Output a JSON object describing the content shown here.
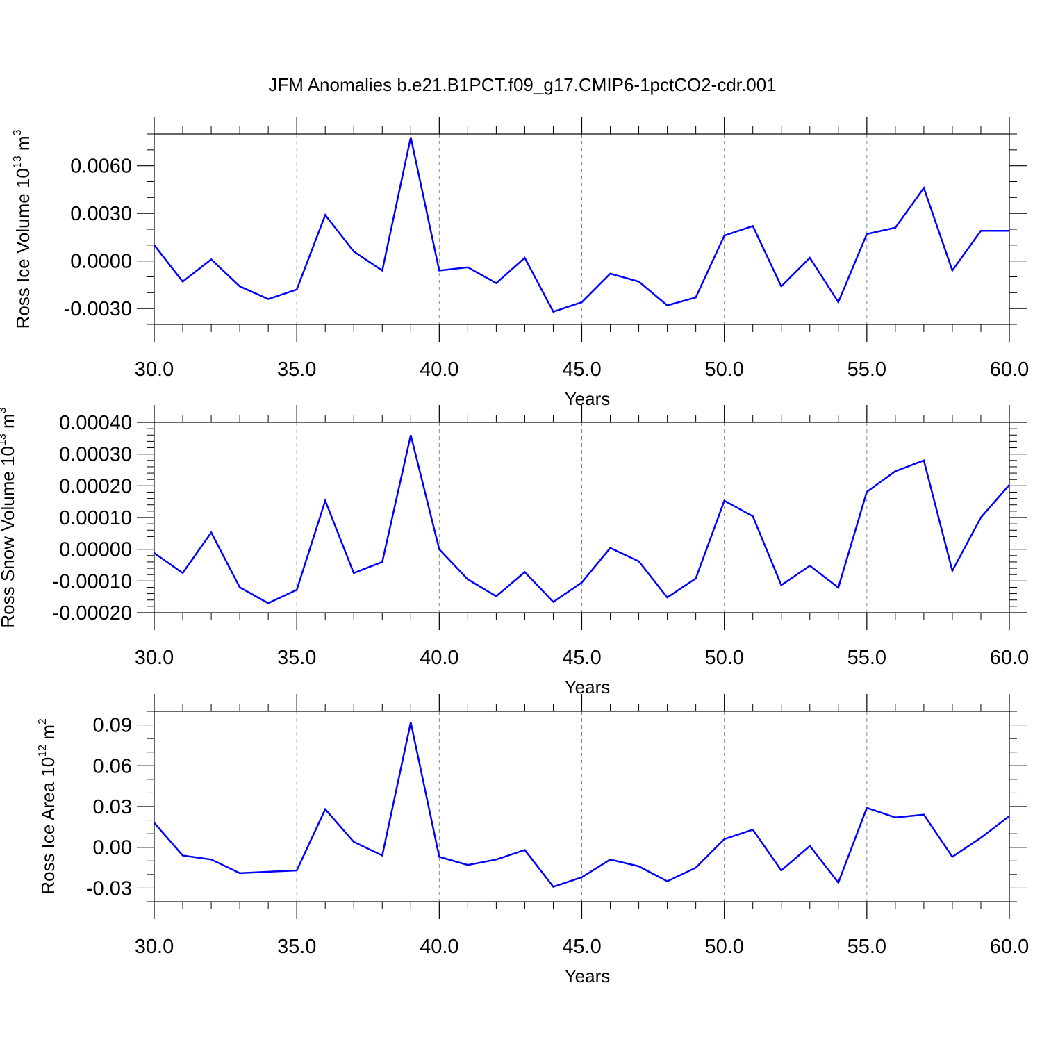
{
  "figure": {
    "title": "JFM Anomalies b.e21.B1PCT.f09_g17.CMIP6-1pctCO2-cdr.001"
  },
  "colors": {
    "series": "#0000ff",
    "grid": "#888888",
    "axis": "#000000"
  },
  "chart_data": [
    {
      "type": "line",
      "ylabel": {
        "main": "Ross Ice Volume 10",
        "sup1": "13",
        "mid": " m",
        "sup2": "3"
      },
      "xlabel": "Years",
      "xlim": [
        30,
        60
      ],
      "ylim": [
        -0.004,
        0.008
      ],
      "x_ticks": [
        30,
        35,
        40,
        45,
        50,
        55,
        60
      ],
      "x_tick_labels": [
        "30.0",
        "35.0",
        "40.0",
        "45.0",
        "50.0",
        "55.0",
        "60.0"
      ],
      "y_ticks": [
        -0.003,
        0,
        0.003,
        0.006
      ],
      "y_tick_labels": [
        "-0.0030",
        "0.0000",
        "0.0030",
        "0.0060"
      ],
      "y_minor_step": 0.001,
      "grid": "x-dashed",
      "series": [
        {
          "x": [
            30,
            31,
            32,
            33,
            34,
            35,
            36,
            37,
            38,
            39,
            40,
            41,
            42,
            43,
            44,
            45,
            46,
            47,
            48,
            49,
            50,
            51,
            52,
            53,
            54,
            55,
            56,
            57,
            58,
            59,
            60
          ],
          "values": [
            0.001,
            -0.0013,
            0.0001,
            -0.0016,
            -0.0024,
            -0.0018,
            0.0029,
            0.0006,
            -0.0006,
            0.0078,
            -0.0006,
            -0.0004,
            -0.0014,
            0.0002,
            -0.0032,
            -0.0026,
            -0.0008,
            -0.0013,
            -0.0028,
            -0.0023,
            0.0016,
            0.0022,
            -0.0016,
            0.0002,
            -0.0026,
            0.0017,
            0.0021,
            0.0046,
            -0.0006,
            0.0019,
            0.0019
          ]
        }
      ]
    },
    {
      "type": "line",
      "ylabel": {
        "main": "Ross Snow Volume 10",
        "sup1": "13",
        "mid": " m",
        "sup2": "3"
      },
      "xlabel": "Years",
      "xlim": [
        30,
        60
      ],
      "ylim": [
        -0.0002,
        0.0004
      ],
      "x_ticks": [
        30,
        35,
        40,
        45,
        50,
        55,
        60
      ],
      "x_tick_labels": [
        "30.0",
        "35.0",
        "40.0",
        "45.0",
        "50.0",
        "55.0",
        "60.0"
      ],
      "y_ticks": [
        -0.0002,
        -0.0001,
        0,
        0.0001,
        0.0002,
        0.0003,
        0.0004
      ],
      "y_tick_labels": [
        "-0.00020",
        "-0.00010",
        "0.00000",
        "0.00010",
        "0.00020",
        "0.00030",
        "0.00040"
      ],
      "y_minor_step": 2e-05,
      "grid": "x-dashed",
      "series": [
        {
          "x": [
            30,
            31,
            32,
            33,
            34,
            35,
            36,
            37,
            38,
            39,
            40,
            41,
            42,
            43,
            44,
            45,
            46,
            47,
            48,
            49,
            50,
            51,
            52,
            53,
            54,
            55,
            56,
            57,
            58,
            59,
            60
          ],
          "values": [
            -1.2e-05,
            -7.5e-05,
            5.3e-05,
            -0.00012,
            -0.00017,
            -0.000128,
            0.000153,
            -7.5e-05,
            -4e-05,
            0.00036,
            0.0,
            -9.5e-05,
            -0.000148,
            -7.2e-05,
            -0.000166,
            -0.000105,
            4e-06,
            -3.8e-05,
            -0.000152,
            -9.2e-05,
            0.000153,
            0.000104,
            -0.000113,
            -5.2e-05,
            -0.000121,
            0.000181,
            0.000246,
            0.00028,
            -6.8e-05,
            0.0001,
            0.000203
          ]
        }
      ]
    },
    {
      "type": "line",
      "ylabel": {
        "main": "Ross Ice Area 10",
        "sup1": "12",
        "mid": " m",
        "sup2": "2"
      },
      "xlabel": "Years",
      "xlim": [
        30,
        60
      ],
      "ylim": [
        -0.04,
        0.1
      ],
      "x_ticks": [
        30,
        35,
        40,
        45,
        50,
        55,
        60
      ],
      "x_tick_labels": [
        "30.0",
        "35.0",
        "40.0",
        "45.0",
        "50.0",
        "55.0",
        "60.0"
      ],
      "y_ticks": [
        -0.03,
        0,
        0.03,
        0.06,
        0.09
      ],
      "y_tick_labels": [
        "-0.03",
        "0.00",
        "0.03",
        "0.06",
        "0.09"
      ],
      "y_minor_step": 0.01,
      "grid": "x-dashed",
      "series": [
        {
          "x": [
            30,
            31,
            32,
            33,
            34,
            35,
            36,
            37,
            38,
            39,
            40,
            41,
            42,
            43,
            44,
            45,
            46,
            47,
            48,
            49,
            50,
            51,
            52,
            53,
            54,
            55,
            56,
            57,
            58,
            59,
            60
          ],
          "values": [
            0.018,
            -0.006,
            -0.009,
            -0.019,
            -0.018,
            -0.017,
            0.028,
            0.004,
            -0.006,
            0.092,
            -0.007,
            -0.013,
            -0.009,
            -0.002,
            -0.029,
            -0.022,
            -0.009,
            -0.014,
            -0.025,
            -0.015,
            0.006,
            0.013,
            -0.017,
            0.001,
            -0.026,
            0.029,
            0.022,
            0.024,
            -0.007,
            0.007,
            0.023
          ]
        }
      ]
    }
  ]
}
